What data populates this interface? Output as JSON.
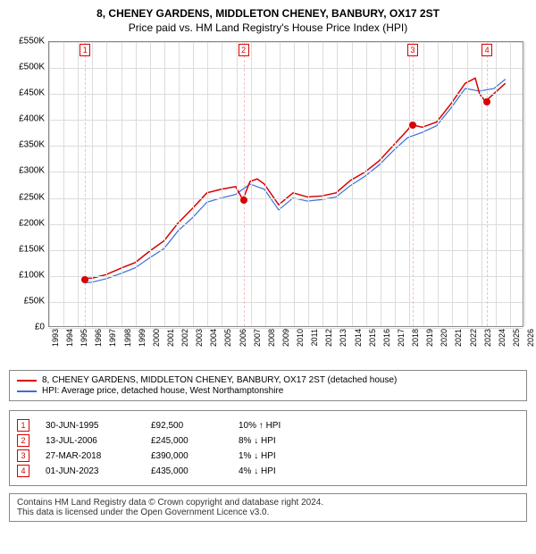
{
  "title_line1": "8, CHENEY GARDENS, MIDDLETON CHENEY, BANBURY, OX17 2ST",
  "title_line2": "Price paid vs. HM Land Registry's House Price Index (HPI)",
  "chart": {
    "type": "line",
    "background_color": "#ffffff",
    "grid_color": "#dcdcdc",
    "border_color": "#888888",
    "x_years": [
      1993,
      1994,
      1995,
      1996,
      1997,
      1998,
      1999,
      2000,
      2001,
      2002,
      2003,
      2004,
      2005,
      2006,
      2007,
      2008,
      2009,
      2010,
      2011,
      2012,
      2013,
      2014,
      2015,
      2016,
      2017,
      2018,
      2019,
      2020,
      2021,
      2022,
      2023,
      2024,
      2025,
      2026
    ],
    "xlim": [
      1993,
      2026
    ],
    "ylim": [
      0,
      550000
    ],
    "y_ticks": [
      0,
      50000,
      100000,
      150000,
      200000,
      250000,
      300000,
      350000,
      400000,
      450000,
      500000,
      550000
    ],
    "y_tick_labels": [
      "£0",
      "£50K",
      "£100K",
      "£150K",
      "£200K",
      "£250K",
      "£300K",
      "£350K",
      "£400K",
      "£450K",
      "£500K",
      "£550K"
    ],
    "series_red": {
      "label": "8, CHENEY GARDENS, MIDDLETON CHENEY, BANBURY, OX17 2ST (detached house)",
      "color": "#d80000",
      "line_width": 1.5,
      "points": [
        [
          1995.5,
          92500
        ],
        [
          1996,
          93000
        ],
        [
          1997,
          100000
        ],
        [
          1998,
          112000
        ],
        [
          1999,
          123000
        ],
        [
          2000,
          145000
        ],
        [
          2001,
          165000
        ],
        [
          2002,
          200000
        ],
        [
          2003,
          228000
        ],
        [
          2004,
          258000
        ],
        [
          2005,
          265000
        ],
        [
          2006,
          270000
        ],
        [
          2006.5,
          245000
        ],
        [
          2007,
          280000
        ],
        [
          2007.5,
          285000
        ],
        [
          2008,
          275000
        ],
        [
          2009,
          235000
        ],
        [
          2010,
          258000
        ],
        [
          2011,
          250000
        ],
        [
          2012,
          252000
        ],
        [
          2013,
          258000
        ],
        [
          2014,
          282000
        ],
        [
          2015,
          298000
        ],
        [
          2016,
          320000
        ],
        [
          2017,
          350000
        ],
        [
          2018,
          380000
        ],
        [
          2018.25,
          390000
        ],
        [
          2019,
          385000
        ],
        [
          2020,
          395000
        ],
        [
          2021,
          430000
        ],
        [
          2022,
          470000
        ],
        [
          2022.7,
          480000
        ],
        [
          2023,
          450000
        ],
        [
          2023.4,
          435000
        ],
        [
          2024,
          450000
        ],
        [
          2024.8,
          470000
        ]
      ]
    },
    "series_blue": {
      "label": "HPI: Average price, detached house, West Northamptonshire",
      "color": "#3a6fd8",
      "line_width": 1.2,
      "points": [
        [
          1995.5,
          84000
        ],
        [
          1996,
          85000
        ],
        [
          1997,
          92000
        ],
        [
          1998,
          102000
        ],
        [
          1999,
          113000
        ],
        [
          2000,
          132000
        ],
        [
          2001,
          150000
        ],
        [
          2002,
          185000
        ],
        [
          2003,
          210000
        ],
        [
          2004,
          240000
        ],
        [
          2005,
          248000
        ],
        [
          2006,
          255000
        ],
        [
          2007,
          275000
        ],
        [
          2008,
          265000
        ],
        [
          2009,
          225000
        ],
        [
          2010,
          248000
        ],
        [
          2011,
          242000
        ],
        [
          2012,
          245000
        ],
        [
          2013,
          250000
        ],
        [
          2014,
          272000
        ],
        [
          2015,
          290000
        ],
        [
          2016,
          312000
        ],
        [
          2017,
          340000
        ],
        [
          2018,
          365000
        ],
        [
          2019,
          375000
        ],
        [
          2020,
          388000
        ],
        [
          2021,
          422000
        ],
        [
          2022,
          460000
        ],
        [
          2023,
          455000
        ],
        [
          2024,
          460000
        ],
        [
          2024.8,
          478000
        ]
      ]
    },
    "markers": [
      {
        "n": "1",
        "year": 1995.5,
        "value": 92500,
        "color": "#d80000",
        "line_color": "#f4c2c2"
      },
      {
        "n": "2",
        "year": 2006.5,
        "value": 245000,
        "color": "#d80000",
        "line_color": "#f4c2c2"
      },
      {
        "n": "3",
        "year": 2018.25,
        "value": 390000,
        "color": "#d80000",
        "line_color": "#f4c2c2"
      },
      {
        "n": "4",
        "year": 2023.4,
        "value": 435000,
        "color": "#d80000",
        "line_color": "#f4c2c2"
      }
    ]
  },
  "legend": [
    {
      "color": "#d80000",
      "label": "8, CHENEY GARDENS, MIDDLETON CHENEY, BANBURY, OX17 2ST (detached house)"
    },
    {
      "color": "#3a6fd8",
      "label": "HPI: Average price, detached house, West Northamptonshire"
    }
  ],
  "sales": [
    {
      "n": "1",
      "date": "30-JUN-1995",
      "price": "£92,500",
      "diff": "10% ↑ HPI",
      "color": "#d80000"
    },
    {
      "n": "2",
      "date": "13-JUL-2006",
      "price": "£245,000",
      "diff": "8% ↓ HPI",
      "color": "#d80000"
    },
    {
      "n": "3",
      "date": "27-MAR-2018",
      "price": "£390,000",
      "diff": "1% ↓ HPI",
      "color": "#d80000"
    },
    {
      "n": "4",
      "date": "01-JUN-2023",
      "price": "£435,000",
      "diff": "4% ↓ HPI",
      "color": "#d80000"
    }
  ],
  "footer_line1": "Contains HM Land Registry data © Crown copyright and database right 2024.",
  "footer_line2": "This data is licensed under the Open Government Licence v3.0."
}
